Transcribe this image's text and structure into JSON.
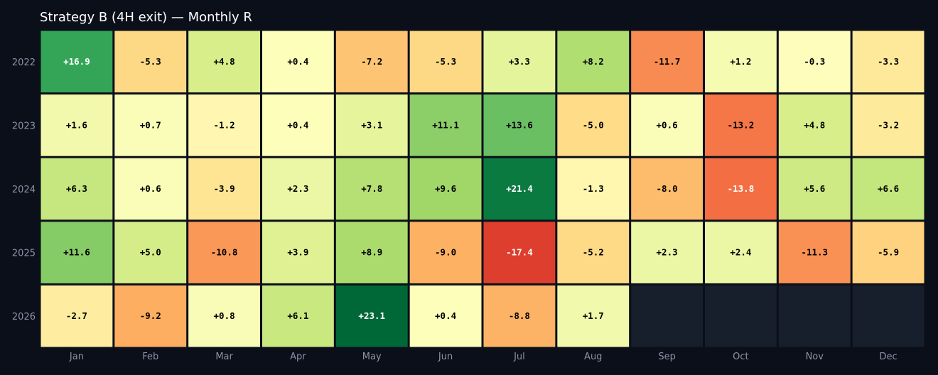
{
  "chart_data": {
    "type": "heatmap",
    "title": "Strategy B (4H exit) — Monthly R",
    "xlabel": "",
    "ylabel": "",
    "x_categories": [
      "Jan",
      "Feb",
      "Mar",
      "Apr",
      "May",
      "Jun",
      "Jul",
      "Aug",
      "Sep",
      "Oct",
      "Nov",
      "Dec"
    ],
    "y_categories": [
      "2022",
      "2023",
      "2024",
      "2025",
      "2026"
    ],
    "values": [
      [
        16.9,
        -5.3,
        4.8,
        0.4,
        -7.2,
        -5.3,
        3.3,
        8.2,
        -11.7,
        1.2,
        -0.3,
        -3.3
      ],
      [
        1.6,
        0.7,
        -1.2,
        0.4,
        3.1,
        11.1,
        13.6,
        -5.0,
        0.6,
        -13.2,
        4.8,
        -3.2
      ],
      [
        6.3,
        0.6,
        -3.9,
        2.3,
        7.8,
        9.6,
        21.4,
        -1.3,
        -8.0,
        -13.8,
        5.6,
        6.6
      ],
      [
        11.6,
        5.0,
        -10.8,
        3.9,
        8.9,
        -9.0,
        -17.4,
        -5.2,
        2.3,
        2.4,
        -11.3,
        -5.9
      ],
      [
        -2.7,
        -9.2,
        0.8,
        6.1,
        23.1,
        0.4,
        -8.8,
        1.7,
        null,
        null,
        null,
        null
      ]
    ],
    "labels": [
      [
        "+16.9",
        "-5.3",
        "+4.8",
        "+0.4",
        "-7.2",
        "-5.3",
        "+3.3",
        "+8.2",
        "-11.7",
        "+1.2",
        "-0.3",
        "-3.3"
      ],
      [
        "+1.6",
        "+0.7",
        "-1.2",
        "+0.4",
        "+3.1",
        "+11.1",
        "+13.6",
        "-5.0",
        "+0.6",
        "-13.2",
        "+4.8",
        "-3.2"
      ],
      [
        "+6.3",
        "+0.6",
        "-3.9",
        "+2.3",
        "+7.8",
        "+9.6",
        "+21.4",
        "-1.3",
        "-8.0",
        "-13.8",
        "+5.6",
        "+6.6"
      ],
      [
        "+11.6",
        "+5.0",
        "-10.8",
        "+3.9",
        "+8.9",
        "-9.0",
        "-17.4",
        "-5.2",
        "+2.3",
        "+2.4",
        "-11.3",
        "-5.9"
      ],
      [
        "-2.7",
        "-9.2",
        "+0.8",
        "+6.1",
        "+23.1",
        "+0.4",
        "-8.8",
        "+1.7",
        "",
        "",
        "",
        ""
      ]
    ],
    "colormap": "RdYlGn",
    "color_range": [
      -23.1,
      23.1
    ],
    "missing_color": "#171e2c",
    "background": "#0b0f19",
    "grid": false,
    "legend": "none"
  }
}
